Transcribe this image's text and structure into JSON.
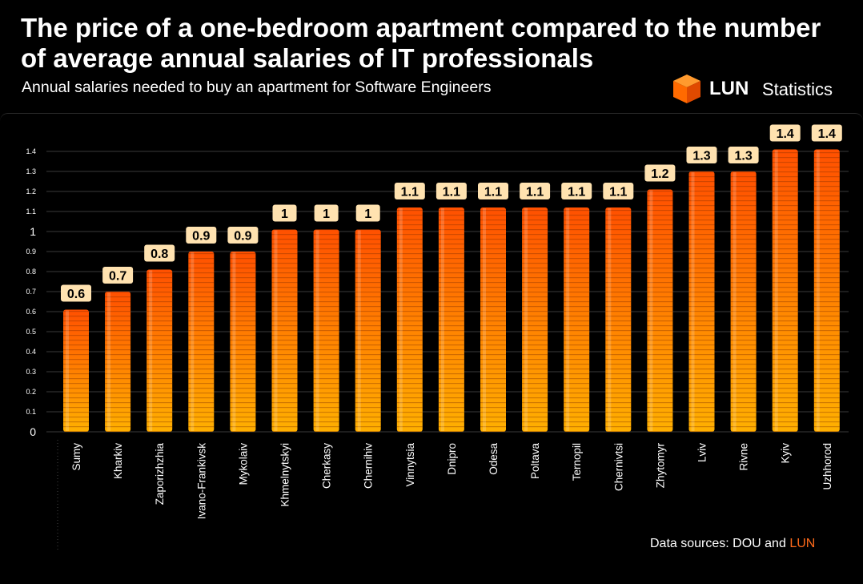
{
  "header": {
    "title": "The price of a one-bedroom apartment compared to the number of average annual salaries of IT professionals",
    "subtitle": "Annual salaries needed to buy an apartment for Software Engineers"
  },
  "logo": {
    "brand": "LUN",
    "suffix": "Statistics"
  },
  "footer": {
    "source_prefix": "Data sources: DOU and",
    "source_accent": "LUN"
  },
  "colors": {
    "accent": "#ff6a1a",
    "bar_top": "#ff5500",
    "bar_bottom": "#ffb000",
    "label_bg": "#ffe2b0"
  },
  "chart_data": {
    "type": "bar",
    "title": "The price of a one-bedroom apartment compared to the number of average annual salaries of IT professionals",
    "subtitle": "Annual salaries needed to buy an apartment for Software Engineers",
    "xlabel": "",
    "ylabel": "",
    "ylim": [
      0,
      1.4
    ],
    "yticks": [
      "0",
      "0.1",
      "0.2",
      "0.3",
      "0.4",
      "0.5",
      "0.6",
      "0.7",
      "0.8",
      "0.9",
      "1",
      "1.1",
      "1.2",
      "1.3",
      "1.4"
    ],
    "grid": true,
    "categories": [
      "Sumy",
      "Kharkiv",
      "Zaporizhzhia",
      "Ivano-Frankivsk",
      "Mykolaiv",
      "Khmelnytskyi",
      "Cherkasy",
      "Chernihiv",
      "Vinnytsia",
      "Dnipro",
      "Odesa",
      "Poltava",
      "Ternopil",
      "Chernivtsi",
      "Zhytomyr",
      "Lviv",
      "Rivne",
      "Kyiv",
      "Uzhhorod"
    ],
    "values": [
      0.61,
      0.7,
      0.81,
      0.9,
      0.9,
      1.01,
      1.01,
      1.01,
      1.12,
      1.12,
      1.12,
      1.12,
      1.12,
      1.12,
      1.21,
      1.3,
      1.3,
      1.41,
      1.41
    ],
    "data_labels": [
      "0.6",
      "0.7",
      "0.8",
      "0.9",
      "0.9",
      "1",
      "1",
      "1",
      "1.1",
      "1.1",
      "1.1",
      "1.1",
      "1.1",
      "1.1",
      "1.2",
      "1.3",
      "1.3",
      "1.4",
      "1.4"
    ]
  }
}
